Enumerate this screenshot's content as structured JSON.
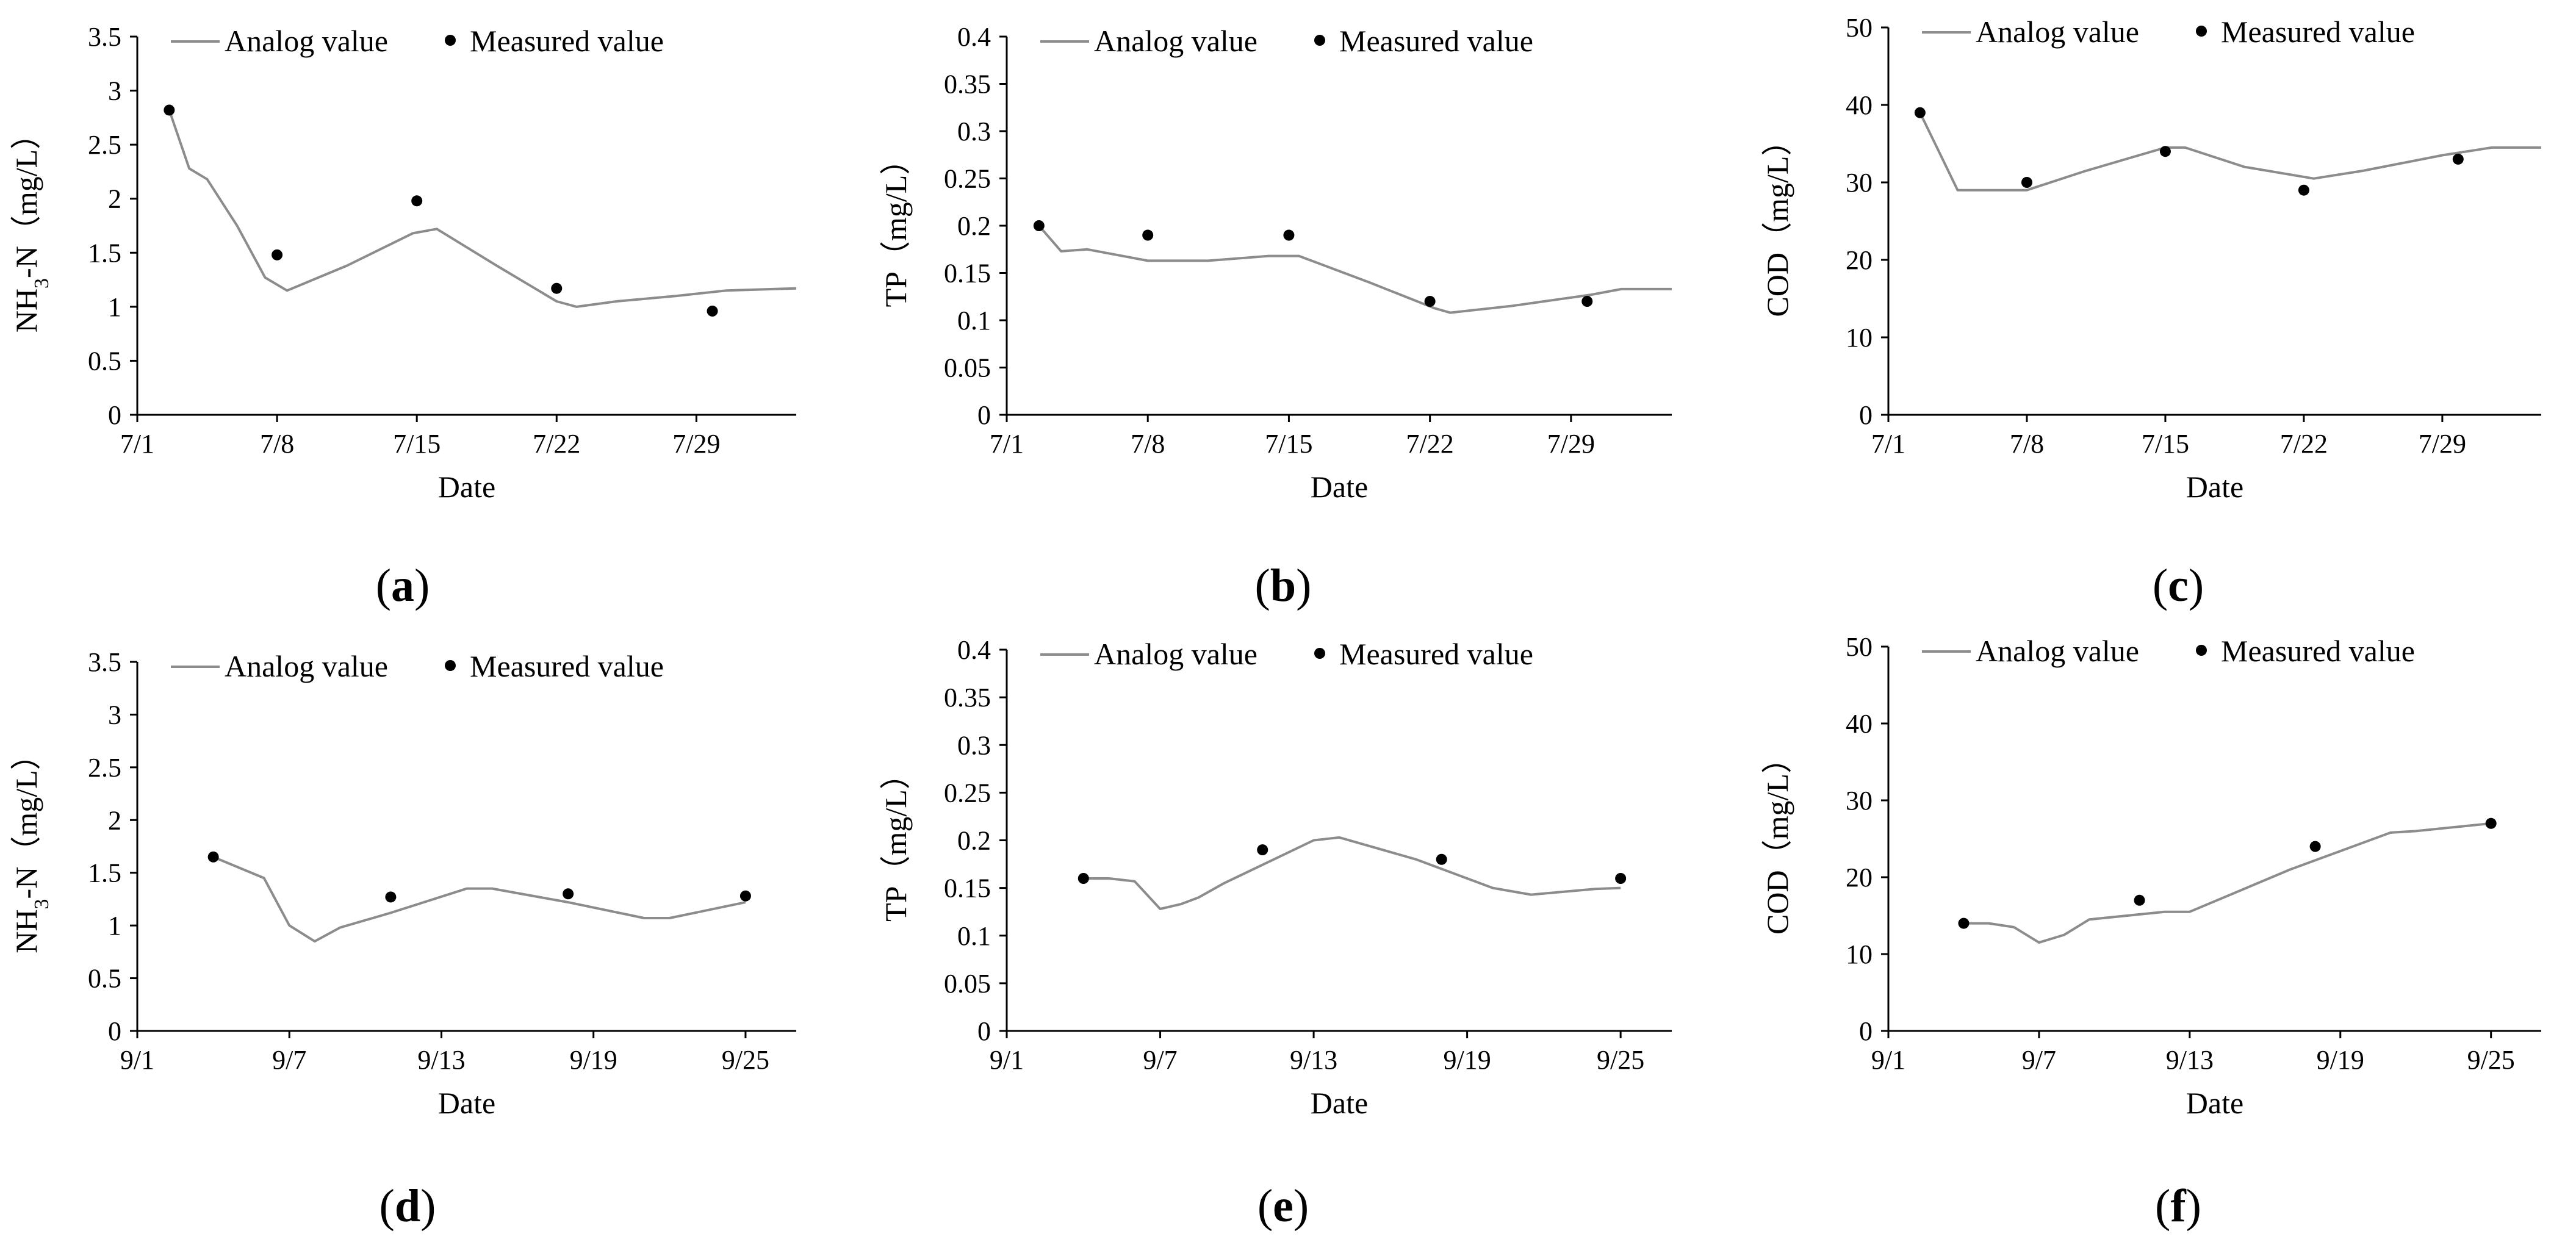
{
  "figure": {
    "panel_labels": [
      "(a)",
      "(b)",
      "(c)",
      "(d)",
      "(e)",
      "(f)"
    ],
    "legend": {
      "line": "Analog value",
      "points": "Measured value"
    },
    "colors": {
      "line": "#8c8c8c",
      "points": "#000000",
      "axis": "#000000"
    }
  },
  "chart_data": [
    {
      "id": "a",
      "type": "line",
      "title": "",
      "xlabel": "Date",
      "ylabel_main": "NH",
      "ylabel_sub": "3",
      "ylabel_rest": "-N（mg/L）",
      "xlim": [
        0,
        33
      ],
      "ylim": [
        0,
        3.5
      ],
      "x_ticks": [
        0,
        7,
        14,
        21,
        28
      ],
      "x_tick_labels": [
        "7/1",
        "7/8",
        "7/15",
        "7/22",
        "7/29"
      ],
      "y_ticks": [
        0,
        0.5,
        1,
        1.5,
        2,
        2.5,
        3,
        3.5
      ],
      "y_tick_labels": [
        "0",
        "0.5",
        "1",
        "1.5",
        "2",
        "2.5",
        "3",
        "3.5"
      ],
      "series": [
        {
          "name": "Analog value",
          "x": [
            1.6,
            2.6,
            3.5,
            5.0,
            6.4,
            7.5,
            10.5,
            13.8,
            15.0,
            18.0,
            21.0,
            22.0,
            24.0,
            27.0,
            29.5,
            33.0
          ],
          "y": [
            2.82,
            2.28,
            2.18,
            1.75,
            1.27,
            1.15,
            1.38,
            1.68,
            1.72,
            1.38,
            1.05,
            1.0,
            1.05,
            1.1,
            1.15,
            1.17
          ]
        },
        {
          "name": "Measured value",
          "x": [
            1.6,
            7.0,
            14.0,
            21.0,
            28.8
          ],
          "y": [
            2.82,
            1.48,
            1.98,
            1.17,
            0.96
          ]
        }
      ]
    },
    {
      "id": "b",
      "type": "line",
      "title": "",
      "xlabel": "Date",
      "ylabel_main": "TP（mg/L）",
      "ylabel_sub": "",
      "ylabel_rest": "",
      "xlim": [
        0,
        33
      ],
      "ylim": [
        0,
        0.4
      ],
      "x_ticks": [
        0,
        7,
        14,
        21,
        28
      ],
      "x_tick_labels": [
        "7/1",
        "7/8",
        "7/15",
        "7/22",
        "7/29"
      ],
      "y_ticks": [
        0,
        0.05,
        0.1,
        0.15,
        0.2,
        0.25,
        0.3,
        0.35,
        0.4
      ],
      "y_tick_labels": [
        "0",
        "0.05",
        "0.1",
        "0.15",
        "0.2",
        "0.25",
        "0.3",
        "0.35",
        "0.4"
      ],
      "series": [
        {
          "name": "Analog value",
          "x": [
            1.6,
            2.7,
            4.0,
            7.0,
            10.0,
            13.0,
            14.5,
            18.0,
            21.2,
            22.0,
            25.0,
            29.0,
            30.5,
            33.0
          ],
          "y": [
            0.2,
            0.173,
            0.175,
            0.163,
            0.163,
            0.168,
            0.168,
            0.14,
            0.113,
            0.108,
            0.115,
            0.127,
            0.133,
            0.133
          ]
        },
        {
          "name": "Measured value",
          "x": [
            1.6,
            7.0,
            14.0,
            21.0,
            28.8
          ],
          "y": [
            0.2,
            0.19,
            0.19,
            0.12,
            0.12
          ]
        }
      ]
    },
    {
      "id": "c",
      "type": "line",
      "title": "",
      "xlabel": "Date",
      "ylabel_main": "COD（mg/L）",
      "ylabel_sub": "",
      "ylabel_rest": "",
      "xlim": [
        0,
        33
      ],
      "ylim": [
        0,
        50
      ],
      "x_ticks": [
        0,
        7,
        14,
        21,
        28
      ],
      "x_tick_labels": [
        "7/1",
        "7/8",
        "7/15",
        "7/22",
        "7/29"
      ],
      "y_ticks": [
        0,
        10,
        20,
        30,
        40,
        50
      ],
      "y_tick_labels": [
        "0",
        "10",
        "20",
        "30",
        "40",
        "50"
      ],
      "series": [
        {
          "name": "Analog value",
          "x": [
            1.6,
            3.5,
            7.0,
            10.0,
            14.0,
            15.0,
            18.0,
            21.5,
            24.0,
            28.0,
            30.5,
            33.0
          ],
          "y": [
            39.0,
            29.0,
            29.0,
            31.5,
            34.5,
            34.5,
            32.0,
            30.5,
            31.5,
            33.5,
            34.5,
            34.5
          ]
        },
        {
          "name": "Measured value",
          "x": [
            1.6,
            7.0,
            14.0,
            21.0,
            28.8
          ],
          "y": [
            39.0,
            30.0,
            34.0,
            29.0,
            33.0
          ]
        }
      ]
    },
    {
      "id": "d",
      "type": "line",
      "title": "",
      "xlabel": "Date",
      "ylabel_main": "NH",
      "ylabel_sub": "3",
      "ylabel_rest": "-N（mg/L）",
      "xlim": [
        0,
        26
      ],
      "ylim": [
        0,
        3.5
      ],
      "x_ticks": [
        0,
        6,
        12,
        18,
        24
      ],
      "x_tick_labels": [
        "9/1",
        "9/7",
        "9/13",
        "9/19",
        "9/25"
      ],
      "y_ticks": [
        0,
        0.5,
        1,
        1.5,
        2,
        2.5,
        3,
        3.5
      ],
      "y_tick_labels": [
        "0",
        "0.5",
        "1",
        "1.5",
        "2",
        "2.5",
        "3",
        "3.5"
      ],
      "series": [
        {
          "name": "Analog value",
          "x": [
            3.0,
            4.0,
            5.0,
            6.0,
            7.0,
            8.0,
            10.0,
            13.0,
            14.0,
            17.0,
            20.0,
            21.0,
            24.0
          ],
          "y": [
            1.65,
            1.55,
            1.45,
            1.0,
            0.85,
            0.98,
            1.12,
            1.35,
            1.35,
            1.22,
            1.07,
            1.07,
            1.22
          ]
        },
        {
          "name": "Measured value",
          "x": [
            3.0,
            10.0,
            17.0,
            24.0
          ],
          "y": [
            1.65,
            1.27,
            1.3,
            1.28
          ]
        }
      ]
    },
    {
      "id": "e",
      "type": "line",
      "title": "",
      "xlabel": "Date",
      "ylabel_main": "TP（mg/L）",
      "ylabel_sub": "",
      "ylabel_rest": "",
      "xlim": [
        0,
        26
      ],
      "ylim": [
        0,
        0.4
      ],
      "x_ticks": [
        0,
        6,
        12,
        18,
        24
      ],
      "x_tick_labels": [
        "9/1",
        "9/7",
        "9/13",
        "9/19",
        "9/25"
      ],
      "y_ticks": [
        0,
        0.05,
        0.1,
        0.15,
        0.2,
        0.25,
        0.3,
        0.35,
        0.4
      ],
      "y_tick_labels": [
        "0",
        "0.05",
        "0.1",
        "0.15",
        "0.2",
        "0.25",
        "0.3",
        "0.35",
        "0.4"
      ],
      "series": [
        {
          "name": "Analog value",
          "x": [
            3.0,
            4.0,
            5.0,
            6.0,
            6.8,
            7.5,
            8.5,
            12.0,
            13.0,
            16.0,
            19.0,
            20.5,
            23.0,
            24.0
          ],
          "y": [
            0.16,
            0.16,
            0.157,
            0.128,
            0.133,
            0.14,
            0.155,
            0.2,
            0.203,
            0.18,
            0.15,
            0.143,
            0.149,
            0.15
          ]
        },
        {
          "name": "Measured value",
          "x": [
            3.0,
            10.0,
            17.0,
            24.0
          ],
          "y": [
            0.16,
            0.19,
            0.18,
            0.16
          ]
        }
      ]
    },
    {
      "id": "f",
      "type": "line",
      "title": "",
      "xlabel": "Date",
      "ylabel_main": "COD（mg/L）",
      "ylabel_sub": "",
      "ylabel_rest": "",
      "xlim": [
        0,
        26
      ],
      "ylim": [
        0,
        50
      ],
      "x_ticks": [
        0,
        6,
        12,
        18,
        24
      ],
      "x_tick_labels": [
        "9/1",
        "9/7",
        "9/13",
        "9/19",
        "9/25"
      ],
      "y_ticks": [
        0,
        10,
        20,
        30,
        40,
        50
      ],
      "y_tick_labels": [
        "0",
        "10",
        "20",
        "30",
        "40",
        "50"
      ],
      "series": [
        {
          "name": "Analog value",
          "x": [
            3.0,
            4.0,
            5.0,
            6.0,
            7.0,
            8.0,
            11.0,
            12.0,
            16.0,
            20.0,
            21.0,
            24.0
          ],
          "y": [
            14.0,
            14.0,
            13.5,
            11.5,
            12.5,
            14.5,
            15.5,
            15.5,
            21.0,
            25.8,
            26.0,
            27.0
          ]
        },
        {
          "name": "Measured value",
          "x": [
            3.0,
            10.0,
            17.0,
            24.0
          ],
          "y": [
            14.0,
            17.0,
            24.0,
            27.0
          ]
        }
      ]
    }
  ]
}
